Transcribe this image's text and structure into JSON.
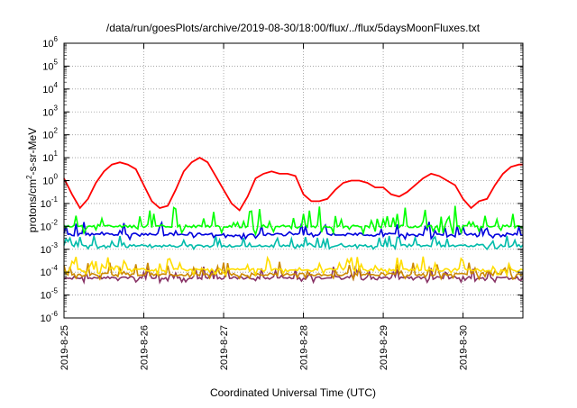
{
  "chart_data": {
    "type": "line",
    "title": "/data/run/goesPlots/archive/2019-08-30/18:00/flux/../flux/5daysMoonFluxes.txt",
    "xlabel": "Coordinated Universal Time (UTC)",
    "ylabel": {
      "base": "protons/cm",
      "sup": "2",
      "rest": "-s-sr-MeV"
    },
    "yscale": "log",
    "ylim_exp": [
      -6,
      6
    ],
    "ytick_exponents": [
      -6,
      -5,
      -4,
      -3,
      -2,
      -1,
      0,
      1,
      2,
      3,
      4,
      5,
      6
    ],
    "xlim_days": [
      0,
      5.75
    ],
    "x_ticks": [
      {
        "day": 0,
        "label": "2019-8-25"
      },
      {
        "day": 1,
        "label": "2019-8-26"
      },
      {
        "day": 2,
        "label": "2019-8-27"
      },
      {
        "day": 3,
        "label": "2019-8-28"
      },
      {
        "day": 4,
        "label": "2019-8-29"
      },
      {
        "day": 5,
        "label": "2019-8-30"
      }
    ],
    "grid": true,
    "series": [
      {
        "color": "#ff0000",
        "x_days": [
          0,
          0.1,
          0.2,
          0.3,
          0.4,
          0.5,
          0.6,
          0.7,
          0.8,
          0.9,
          1,
          1.1,
          1.2,
          1.3,
          1.4,
          1.5,
          1.6,
          1.7,
          1.8,
          1.9,
          2,
          2.1,
          2.2,
          2.3,
          2.4,
          2.5,
          2.6,
          2.7,
          2.8,
          2.9,
          3,
          3.1,
          3.2,
          3.3,
          3.4,
          3.5,
          3.6,
          3.7,
          3.8,
          3.9,
          4,
          4.1,
          4.2,
          4.3,
          4.4,
          4.5,
          4.6,
          4.7,
          4.8,
          4.9,
          5,
          5.1,
          5.2,
          5.3,
          5.4,
          5.5,
          5.6,
          5.7,
          5.75
        ],
        "log10_values": [
          0.1,
          -0.6,
          -1.2,
          -0.8,
          -0.1,
          0.4,
          0.7,
          0.8,
          0.7,
          0.5,
          -0.2,
          -0.9,
          -1.2,
          -1.1,
          -0.4,
          0.4,
          0.8,
          1.0,
          0.8,
          0.2,
          -0.4,
          -1.0,
          -1.3,
          -0.7,
          0.1,
          0.3,
          0.4,
          0.3,
          0.3,
          0.2,
          -0.6,
          -0.9,
          -0.9,
          -0.8,
          -0.4,
          -0.1,
          0.0,
          0.0,
          -0.1,
          -0.3,
          -0.3,
          -0.6,
          -0.7,
          -0.5,
          -0.2,
          0.1,
          0.3,
          0.2,
          0.0,
          -0.2,
          -0.8,
          -1.2,
          -0.9,
          -0.8,
          -0.2,
          0.3,
          0.6,
          0.7,
          0.7
        ]
      },
      {
        "color": "#00ff00",
        "baseline_log10": -2.0,
        "spread_log10": 0.9,
        "seed": 11
      },
      {
        "color": "#0000dd",
        "baseline_log10": -2.35,
        "spread_log10": 0.55,
        "seed": 23
      },
      {
        "color": "#00bbaa",
        "baseline_log10": -2.85,
        "spread_log10": 0.45,
        "seed": 37
      },
      {
        "color": "#ffdd00",
        "baseline_log10": -3.9,
        "spread_log10": 0.6,
        "seed": 51
      },
      {
        "color": "#cc8800",
        "baseline_log10": -4.1,
        "spread_log10": 0.55,
        "seed": 67
      },
      {
        "color": "#883366",
        "baseline_log10": -4.25,
        "spread_log10": 0.5,
        "seed": 83
      }
    ]
  }
}
